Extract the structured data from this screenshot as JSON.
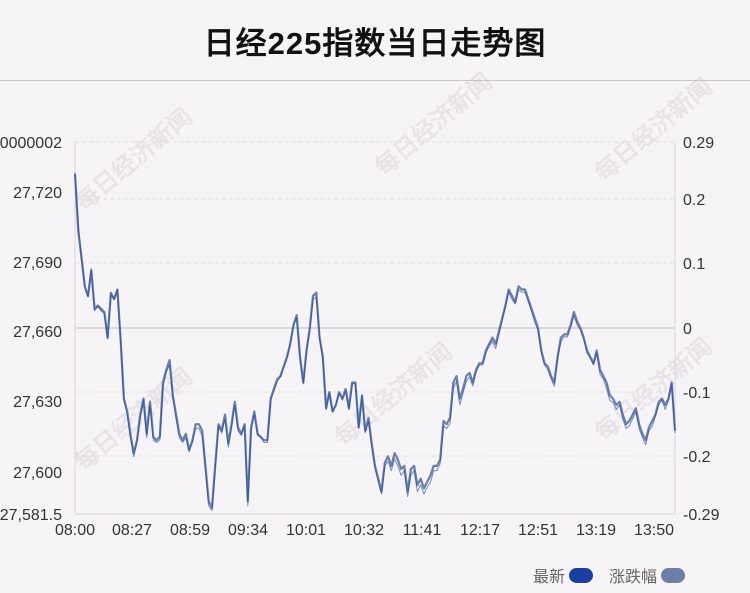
{
  "chart_data": {
    "type": "line",
    "title": "日经225指数当日走势图",
    "x_ticks": [
      "08:00",
      "08:27",
      "08:59",
      "09:34",
      "10:01",
      "10:32",
      "11:41",
      "12:17",
      "12:51",
      "13:19",
      "13:50"
    ],
    "y_left_ticks": [
      "0000002",
      "27,720",
      "27,690",
      "27,660",
      "27,630",
      "27,600",
      "27,581.5"
    ],
    "y_left_ylim": [
      27581.5,
      27740
    ],
    "y_right_ticks": [
      "0.29",
      "0.2",
      "0.1",
      "0",
      "-0.1",
      "-0.2",
      "-0.29"
    ],
    "y_right_ylim": [
      -0.29,
      0.29
    ],
    "reference_value": 27660,
    "grid": true,
    "legend_position": "bottom-right",
    "series": [
      {
        "name": "最新",
        "color": "#1a3fa0",
        "values": [
          27727,
          27705,
          27690,
          27678,
          27674,
          27686,
          27668,
          27670,
          27668,
          27667,
          27656,
          27675,
          27673,
          27677,
          27655,
          27630,
          27624,
          27614,
          27606,
          27612,
          27622,
          27630,
          27614,
          27628,
          27613,
          27612,
          27613,
          27636,
          27642,
          27645,
          27631,
          27622,
          27614,
          27612,
          27614,
          27608,
          27612,
          27618,
          27618,
          27615,
          27601,
          27585,
          27583,
          27601,
          27619,
          27616,
          27622,
          27610,
          27618,
          27628,
          27617,
          27615,
          27619,
          27585,
          27617,
          27624,
          27615,
          27614,
          27612,
          27612,
          27630,
          27634,
          27638,
          27640,
          27644,
          27648,
          27654,
          27662,
          27665,
          27648,
          27637,
          27650,
          27660,
          27673,
          27674,
          27656,
          27648,
          27626,
          27633,
          27625,
          27628,
          27633,
          27630,
          27634,
          27626,
          27637,
          27637,
          27618,
          27632,
          27616,
          27621,
          27610,
          27601,
          27595,
          27590,
          27602,
          27604,
          27600,
          27605,
          27602,
          27598,
          27600,
          27589,
          27598,
          27600,
          27591,
          27594,
          27590,
          27593,
          27595,
          27600,
          27600,
          27603,
          27619,
          27618,
          27620,
          27635,
          27638,
          27628,
          27633,
          27638,
          27640,
          27636,
          27642,
          27645,
          27645,
          27650,
          27653,
          27655,
          27652,
          27658,
          27664,
          27670,
          27676,
          27673,
          27671,
          27677,
          27676,
          27676,
          27672,
          27668,
          27663,
          27660,
          27650,
          27645,
          27643,
          27639,
          27636,
          27648,
          27655,
          27657,
          27657,
          27661,
          27666,
          27662,
          27660,
          27656,
          27650,
          27648,
          27645,
          27650,
          27641,
          27639,
          27635,
          27630,
          27629,
          27626,
          27628,
          27622,
          27618,
          27619,
          27622,
          27625,
          27618,
          27614,
          27611,
          27617,
          27619,
          27623,
          27628,
          27630,
          27626,
          27630,
          27637,
          27616
        ]
      },
      {
        "name": "涨跌幅",
        "color": "#6b7fa8",
        "values": [
          0.24,
          0.15,
          0.11,
          0.065,
          0.05,
          0.09,
          0.03,
          0.035,
          0.03,
          0.025,
          -0.015,
          0.055,
          0.045,
          0.06,
          -0.02,
          -0.11,
          -0.13,
          -0.165,
          -0.195,
          -0.175,
          -0.135,
          -0.11,
          -0.165,
          -0.115,
          -0.17,
          -0.175,
          -0.17,
          -0.085,
          -0.065,
          -0.05,
          -0.105,
          -0.135,
          -0.165,
          -0.175,
          -0.165,
          -0.19,
          -0.175,
          -0.15,
          -0.15,
          -0.16,
          -0.215,
          -0.27,
          -0.28,
          -0.215,
          -0.15,
          -0.16,
          -0.135,
          -0.18,
          -0.15,
          -0.115,
          -0.155,
          -0.165,
          -0.15,
          -0.27,
          -0.155,
          -0.13,
          -0.165,
          -0.17,
          -0.175,
          -0.175,
          -0.11,
          -0.095,
          -0.08,
          -0.075,
          -0.06,
          -0.045,
          -0.025,
          0.005,
          0.02,
          -0.045,
          -0.085,
          -0.035,
          0.0,
          0.05,
          0.055,
          -0.015,
          -0.045,
          -0.125,
          -0.1,
          -0.13,
          -0.12,
          -0.1,
          -0.11,
          -0.095,
          -0.125,
          -0.085,
          -0.085,
          -0.155,
          -0.105,
          -0.16,
          -0.14,
          -0.18,
          -0.215,
          -0.235,
          -0.255,
          -0.21,
          -0.2,
          -0.215,
          -0.195,
          -0.205,
          -0.22,
          -0.215,
          -0.255,
          -0.22,
          -0.215,
          -0.245,
          -0.235,
          -0.25,
          -0.24,
          -0.23,
          -0.215,
          -0.215,
          -0.205,
          -0.145,
          -0.15,
          -0.14,
          -0.085,
          -0.075,
          -0.11,
          -0.095,
          -0.075,
          -0.07,
          -0.085,
          -0.065,
          -0.055,
          -0.055,
          -0.035,
          -0.025,
          -0.015,
          -0.025,
          -0.005,
          0.015,
          0.035,
          0.06,
          0.05,
          0.04,
          0.065,
          0.06,
          0.06,
          0.045,
          0.03,
          0.015,
          0.0,
          -0.035,
          -0.055,
          -0.06,
          -0.075,
          -0.085,
          -0.045,
          -0.015,
          -0.01,
          -0.01,
          0.005,
          0.025,
          0.01,
          0.0,
          -0.015,
          -0.035,
          -0.045,
          -0.055,
          -0.035,
          -0.065,
          -0.075,
          -0.085,
          -0.105,
          -0.11,
          -0.12,
          -0.115,
          -0.135,
          -0.15,
          -0.145,
          -0.135,
          -0.125,
          -0.15,
          -0.165,
          -0.175,
          -0.155,
          -0.145,
          -0.135,
          -0.115,
          -0.11,
          -0.12,
          -0.11,
          -0.085,
          -0.16
        ]
      }
    ]
  },
  "legend": {
    "latest_label": "最新",
    "latest_color": "#1a3fa0",
    "change_label": "涨跌幅",
    "change_color": "#6b7fa8"
  },
  "watermark": "每日经济新闻"
}
